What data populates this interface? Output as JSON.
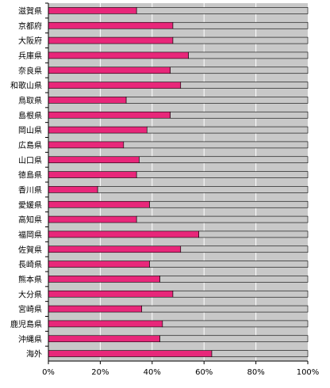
{
  "chart_data": {
    "type": "bar",
    "orientation": "horizontal",
    "stacked_to_100": true,
    "categories": [
      "滋賀県",
      "京都府",
      "大阪府",
      "兵庫県",
      "奈良県",
      "和歌山県",
      "鳥取県",
      "島根県",
      "岡山県",
      "広島県",
      "山口県",
      "徳島県",
      "香川県",
      "愛媛県",
      "高知県",
      "福岡県",
      "佐賀県",
      "長崎県",
      "熊本県",
      "大分県",
      "宮崎県",
      "鹿児島県",
      "沖縄県",
      "海外"
    ],
    "values": [
      34,
      48,
      48,
      54,
      47,
      51,
      30,
      47,
      38,
      29,
      35,
      34,
      19,
      39,
      34,
      58,
      51,
      39,
      43,
      48,
      36,
      44,
      43,
      63
    ],
    "remainder_values": [
      66,
      52,
      52,
      46,
      53,
      49,
      70,
      53,
      62,
      71,
      65,
      66,
      81,
      61,
      66,
      42,
      49,
      61,
      57,
      52,
      64,
      56,
      57,
      37
    ],
    "x_ticks": [
      "0%",
      "20%",
      "40%",
      "60%",
      "80%",
      "100%"
    ],
    "xlim": [
      0,
      100
    ],
    "grid": "vertical",
    "legend": "none",
    "colors": {
      "bar": "#e8277a",
      "remainder": "#c8c8c8",
      "plot_background": "#c8c8c8",
      "gridline": "#ffffff",
      "axis": "#000000"
    }
  }
}
